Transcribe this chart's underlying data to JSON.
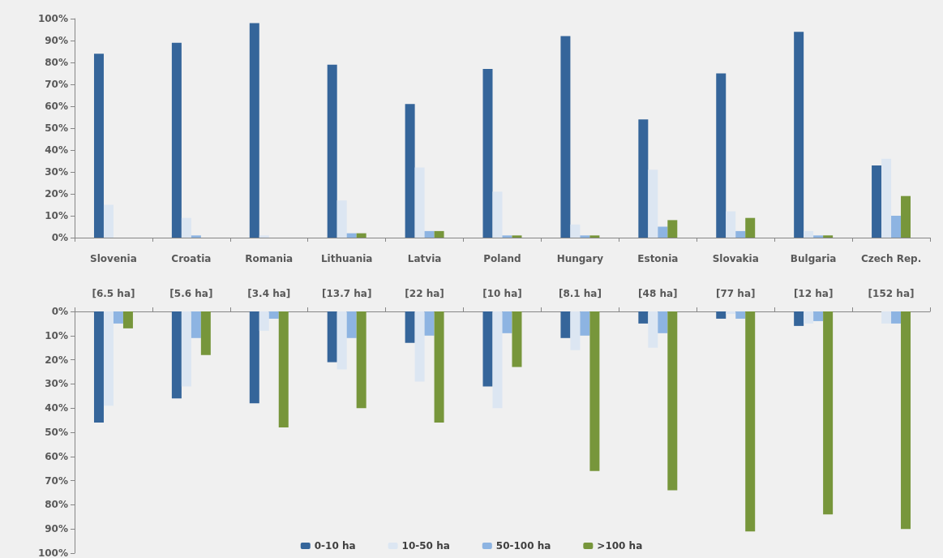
{
  "chart_data": [
    {
      "type": "bar",
      "categories": [
        "Slovenia",
        "Croatia",
        "Romania",
        "Lithuania",
        "Latvia",
        "Poland",
        "Hungary",
        "Estonia",
        "Slovakia",
        "Bulgaria",
        "Czech Rep."
      ],
      "series": [
        {
          "color": "#35659a",
          "values": [
            84,
            89,
            98,
            79,
            61,
            77,
            92,
            54,
            75,
            94,
            33
          ]
        },
        {
          "color": "#dce6f2",
          "values": [
            15,
            9,
            1,
            17,
            32,
            21,
            6,
            31,
            12,
            3,
            36
          ]
        },
        {
          "color": "#8db4e2",
          "values": [
            0,
            1,
            0,
            2,
            3,
            1,
            1,
            5,
            3,
            1,
            10
          ]
        },
        {
          "color": "#77963b",
          "values": [
            0,
            0,
            0,
            2,
            3,
            1,
            1,
            8,
            9,
            1,
            19
          ]
        }
      ],
      "ylim": [
        0,
        100
      ],
      "yticks": [
        {
          "value": 0,
          "label": "0%"
        },
        {
          "value": 10,
          "label": "10%"
        },
        {
          "value": 20,
          "label": "20%"
        },
        {
          "value": 30,
          "label": "30%"
        },
        {
          "value": 40,
          "label": "40%"
        },
        {
          "value": 50,
          "label": "50%"
        },
        {
          "value": 60,
          "label": "60%"
        },
        {
          "value": 70,
          "label": "70%"
        },
        {
          "value": 80,
          "label": "80%"
        },
        {
          "value": 90,
          "label": "90%"
        },
        {
          "value": 100,
          "label": "100%"
        }
      ],
      "grid": false,
      "legend": false
    },
    {
      "type": "bar",
      "categories": [
        "[6.5 ha]",
        "[5.6 ha]",
        "[3.4 ha]",
        "[13.7 ha]",
        "[22 ha]",
        "[10 ha]",
        "[8.1 ha]",
        "[48 ha]",
        "[77 ha]",
        "[12 ha]",
        "[152 ha]"
      ],
      "series": [
        {
          "name": "0-10 ha",
          "color": "#35659a",
          "values": [
            46,
            36,
            38,
            21,
            13,
            31,
            11,
            5,
            3,
            6,
            0
          ]
        },
        {
          "name": "10-50 ha",
          "color": "#dce6f2",
          "values": [
            39,
            31,
            8,
            24,
            29,
            40,
            16,
            15,
            1,
            5,
            5
          ]
        },
        {
          "name": "50-100 ha",
          "color": "#8db4e2",
          "values": [
            5,
            11,
            3,
            11,
            10,
            9,
            10,
            9,
            3,
            4,
            5
          ]
        },
        {
          "name": ">100 ha",
          "color": "#77963b",
          "values": [
            7,
            18,
            48,
            40,
            46,
            23,
            66,
            74,
            91,
            84,
            90
          ]
        }
      ],
      "ylim": [
        100,
        0
      ],
      "yticks": [
        {
          "value": 0,
          "label": "0%"
        },
        {
          "value": 10,
          "label": "10%"
        },
        {
          "value": 20,
          "label": "20%"
        },
        {
          "value": 30,
          "label": "30%"
        },
        {
          "value": 40,
          "label": "40%"
        },
        {
          "value": 50,
          "label": "50%"
        },
        {
          "value": 60,
          "label": "60%"
        },
        {
          "value": 70,
          "label": "70%"
        },
        {
          "value": 80,
          "label": "80%"
        },
        {
          "value": 90,
          "label": "90%"
        },
        {
          "value": 100,
          "label": "100%"
        }
      ],
      "grid": false,
      "legend": "bottom"
    }
  ]
}
